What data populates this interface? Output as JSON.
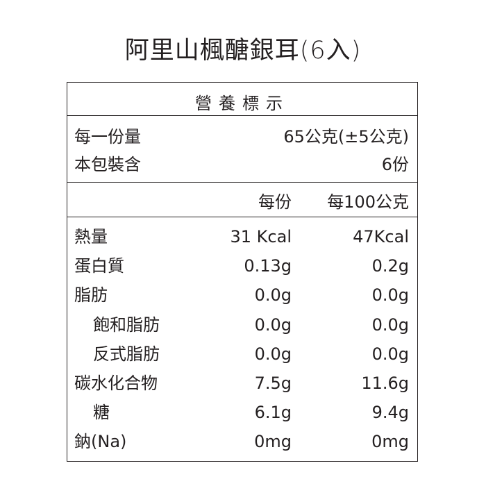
{
  "title": "阿里山楓醣銀耳(6入)",
  "label": {
    "heading": "營養標示",
    "serving_size_label": "每一份量",
    "serving_size_value": "65公克(±5公克)",
    "servings_label": "本包裝含",
    "servings_value": "6份",
    "col_per_serving": "每份",
    "col_per_100g": "每100公克",
    "rows": [
      {
        "name": "熱量",
        "per_serving": "31 Kcal",
        "per_100g": "47Kcal",
        "indent": false
      },
      {
        "name": "蛋白質",
        "per_serving": "0.13g",
        "per_100g": "0.2g",
        "indent": false
      },
      {
        "name": "脂肪",
        "per_serving": "0.0g",
        "per_100g": "0.0g",
        "indent": false
      },
      {
        "name": "飽和脂肪",
        "per_serving": "0.0g",
        "per_100g": "0.0g",
        "indent": true
      },
      {
        "name": "反式脂肪",
        "per_serving": "0.0g",
        "per_100g": "0.0g",
        "indent": true
      },
      {
        "name": "碳水化合物",
        "per_serving": "7.5g",
        "per_100g": "11.6g",
        "indent": false
      },
      {
        "name": "糖",
        "per_serving": "6.1g",
        "per_100g": "9.4g",
        "indent": true
      },
      {
        "name": "鈉(Na)",
        "per_serving": "0mg",
        "per_100g": "0mg",
        "indent": false
      }
    ]
  }
}
